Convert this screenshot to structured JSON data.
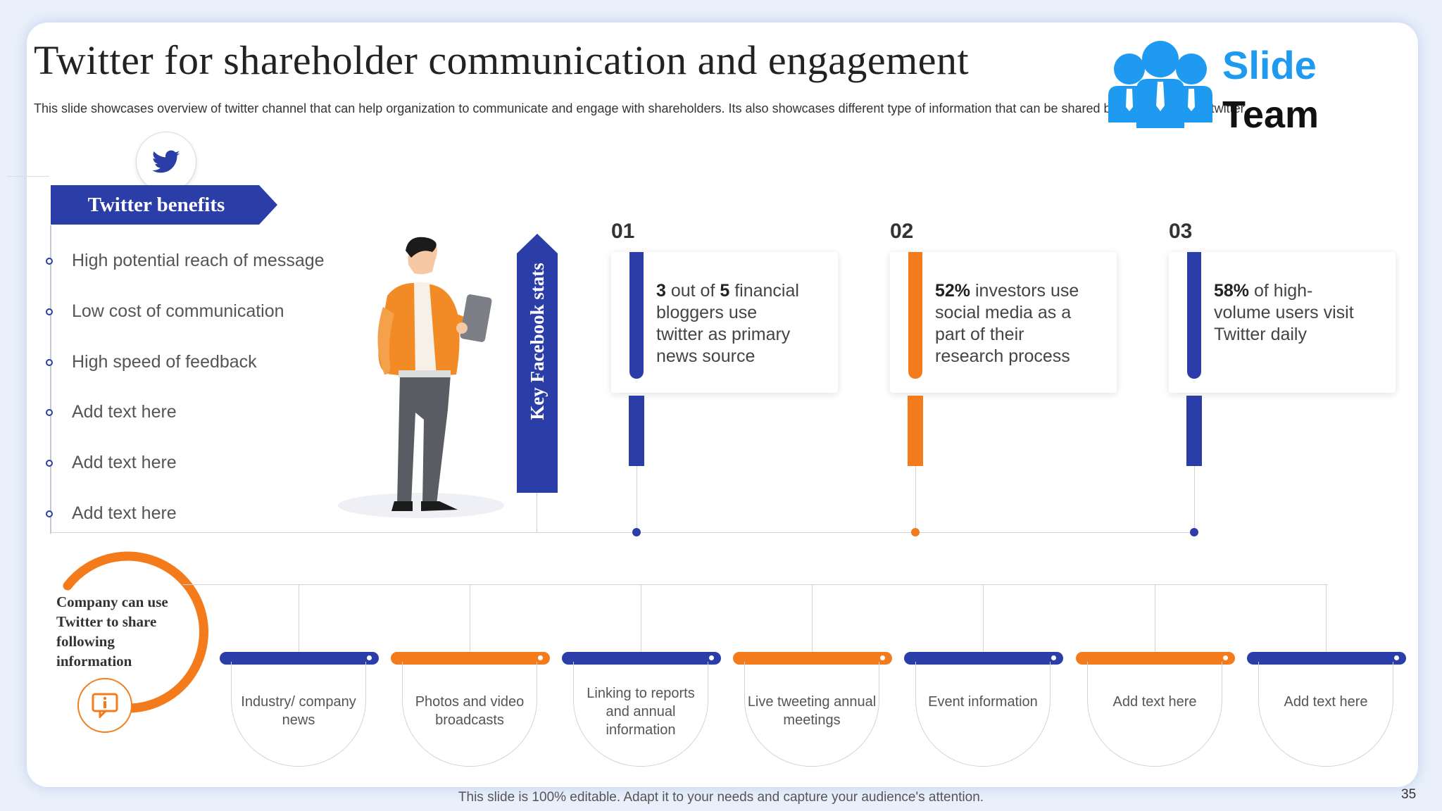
{
  "slide": {
    "title": "Twitter for shareholder communication and engagement",
    "subtitle": "This slide showcases overview of twitter channel that can help organization to communicate and engage with shareholders. Its also showcases different type of information that can be shared by organization on twitter.",
    "footer": "This slide is 100% editable. Adapt it to your needs and capture your audience's attention.",
    "page_number": "35"
  },
  "logo": {
    "line1": "Slide",
    "line2": "Team"
  },
  "benefits": {
    "heading": "Twitter benefits",
    "items": [
      "High potential reach of message",
      "Low cost of communication",
      "High speed of feedback",
      "Add text here",
      "Add text here",
      "Add text here"
    ]
  },
  "key_stats": {
    "heading": "Key Facebook stats",
    "stats": [
      {
        "number": "01",
        "strong": "3",
        "rest1": " out of ",
        "strong2": "5",
        "rest2": " financial bloggers use twitter as primary news source",
        "color": "#2b3ea8"
      },
      {
        "number": "02",
        "strong": "52%",
        "rest1": " investors use social media as a part of their research process",
        "strong2": "",
        "rest2": "",
        "color": "#f47b1c"
      },
      {
        "number": "03",
        "strong": "58%",
        "rest1": " of high-volume users visit Twitter daily",
        "strong2": "",
        "rest2": "",
        "color": "#2b3ea8"
      }
    ]
  },
  "share_info": {
    "label": "Company can use Twitter to share following information",
    "items": [
      {
        "label": "Industry/ company news",
        "color": "#2b3ea8"
      },
      {
        "label": "Photos and video broadcasts",
        "color": "#f47b1c"
      },
      {
        "label": "Linking to reports and annual information",
        "color": "#2b3ea8"
      },
      {
        "label": "Live tweeting annual meetings",
        "color": "#f47b1c"
      },
      {
        "label": "Event information",
        "color": "#2b3ea8"
      },
      {
        "label": "Add text here",
        "color": "#f47b1c"
      },
      {
        "label": "Add text here",
        "color": "#2b3ea8"
      }
    ]
  },
  "colors": {
    "navy": "#2b3ea8",
    "orange": "#f47b1c",
    "twitter_blue": "#1e9bf0"
  },
  "icons": [
    "twitter-bird-icon",
    "slideteam-logo-icon",
    "info-message-icon",
    "businessman-illustration"
  ]
}
